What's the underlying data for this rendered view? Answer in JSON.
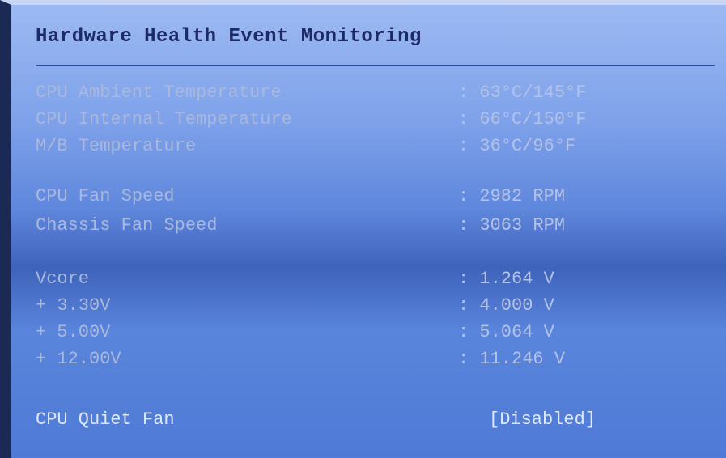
{
  "header": {
    "title": "Hardware Health Event Monitoring"
  },
  "groups": [
    {
      "rows": [
        {
          "label": "CPU Ambient Temperature",
          "value": ": 63°C/145°F"
        },
        {
          "label": "CPU Internal Temperature",
          "value": ": 66°C/150°F"
        },
        {
          "label": "M/B Temperature",
          "value": ": 36°C/96°F"
        }
      ]
    },
    {
      "rows": [
        {
          "label": "CPU Fan Speed",
          "value": ": 2982 RPM"
        },
        {
          "label": "Chassis Fan Speed",
          "value": ": 3063 RPM"
        }
      ]
    },
    {
      "rows": [
        {
          "label": "Vcore",
          "value": ": 1.264 V"
        },
        {
          "label": "+ 3.30V",
          "value": ": 4.000 V"
        },
        {
          "label": "+ 5.00V",
          "value": ": 5.064 V"
        },
        {
          "label": "+ 12.00V",
          "value": ": 11.246 V"
        }
      ]
    }
  ],
  "option": {
    "label": "CPU Quiet Fan",
    "value": "[Disabled]"
  }
}
